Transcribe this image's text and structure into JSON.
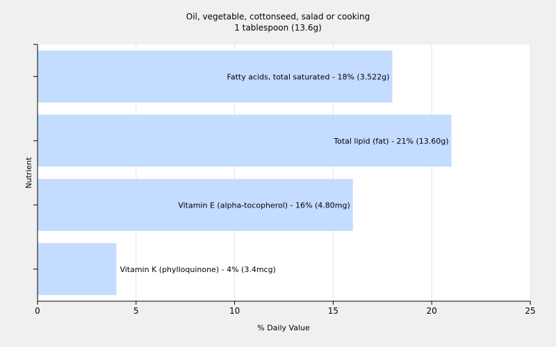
{
  "chart_data": {
    "type": "bar",
    "orientation": "horizontal",
    "title": "Oil, vegetable, cottonseed, salad or cooking",
    "subtitle": "1 tablespoon (13.6g)",
    "xlabel": "% Daily Value",
    "ylabel": "Nutrient",
    "xlim": [
      0,
      25
    ],
    "xticks": [
      "0",
      "5",
      "10",
      "15",
      "20",
      "25"
    ],
    "grid": true,
    "bar_color": "#c4dcff",
    "categories": [
      "Fatty acids, total saturated",
      "Total lipid (fat)",
      "Vitamin E (alpha-tocopherol)",
      "Vitamin K (phylloquinone)"
    ],
    "values": [
      18,
      21,
      16,
      4
    ],
    "labels": [
      "Fatty acids, total saturated - 18% (3.522g)",
      "Total lipid (fat) - 21% (13.60g)",
      "Vitamin E (alpha-tocopherol) - 16% (4.80mg)",
      "Vitamin K (phylloquinone) - 4% (3.4mcg)"
    ]
  }
}
